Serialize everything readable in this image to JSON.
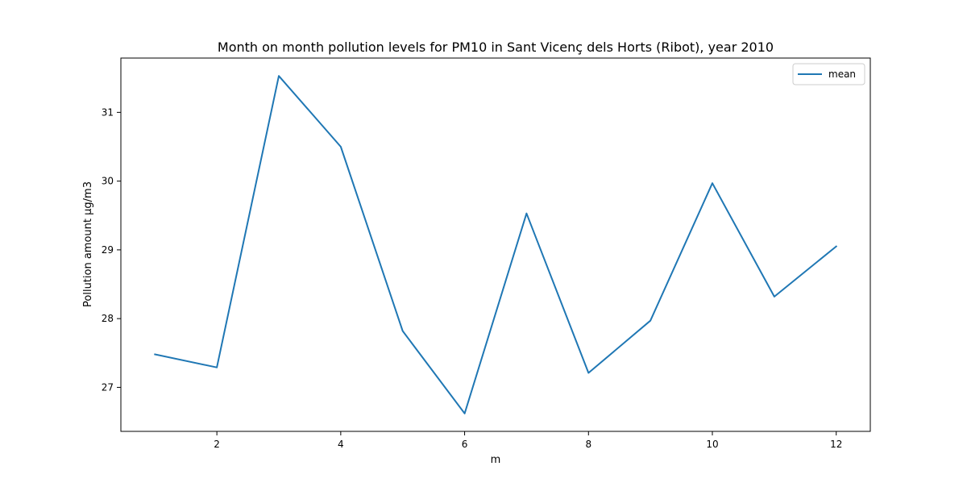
{
  "chart_data": {
    "type": "line",
    "title": "Month on month pollution levels for PM10 in Sant Vicenç dels Horts (Ribot), year 2010",
    "xlabel": "m",
    "ylabel": "Pollution amount µg/m3",
    "xlim": [
      0.45,
      12.55
    ],
    "ylim": [
      26.36,
      31.79
    ],
    "xticks": [
      2,
      4,
      6,
      8,
      10,
      12
    ],
    "yticks": [
      27,
      28,
      29,
      30,
      31
    ],
    "grid": false,
    "legend_position": "top-right",
    "series": [
      {
        "name": "mean",
        "color": "#1f77b4",
        "x": [
          1,
          2,
          3,
          4,
          5,
          6,
          7,
          8,
          9,
          10,
          11,
          12
        ],
        "y": [
          27.48,
          27.29,
          31.53,
          30.5,
          27.82,
          26.62,
          29.53,
          27.21,
          27.97,
          29.97,
          28.32,
          29.05
        ]
      }
    ]
  }
}
